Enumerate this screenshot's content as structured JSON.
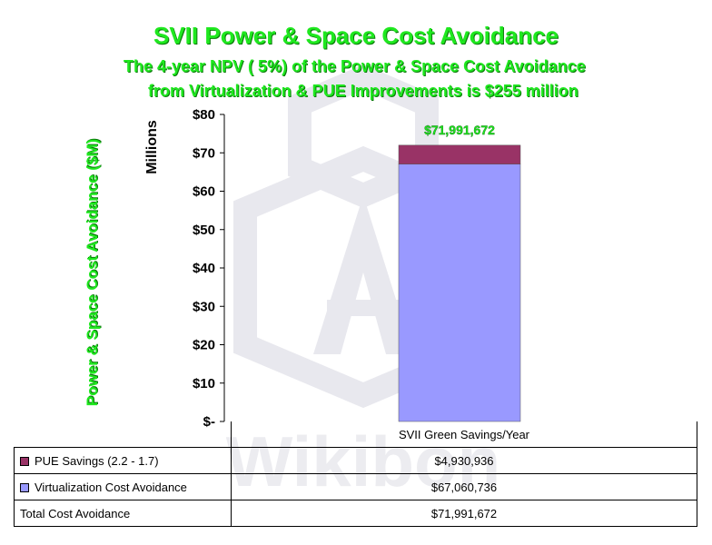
{
  "header": {
    "title": "SVII Power & Space Cost Avoidance",
    "subtitle_line1": "The 4-year NPV ( 5%) of the Power & Space Cost Avoidance",
    "subtitle_line2": "from Virtualization & PUE Improvements is $255 million"
  },
  "colors": {
    "title_green": "#1fe81f",
    "virtualization": "#9999ff",
    "pue": "#993366"
  },
  "chart_data": {
    "type": "bar",
    "stacked": true,
    "categories": [
      "SVII Green Savings/Year"
    ],
    "series": [
      {
        "name": "Virtualization Cost Avoidance",
        "values": [
          67.060736
        ],
        "color": "#9999ff"
      },
      {
        "name": "PUE Savings (2.2 - 1.7)",
        "values": [
          4.930936
        ],
        "color": "#993366"
      }
    ],
    "ylabel": "Power & Space Cost Avoidance ($M)",
    "unit_label": "Millions",
    "ylim": [
      0,
      80
    ],
    "yticks": [
      0,
      10,
      20,
      30,
      40,
      50,
      60,
      70,
      80
    ],
    "ytick_labels": [
      "$-",
      "$10",
      "$20",
      "$30",
      "$40",
      "$50",
      "$60",
      "$70",
      "$80"
    ],
    "total_label": "$71,991,672",
    "grid": false
  },
  "table": {
    "category": "SVII Green Savings/Year",
    "rows": [
      {
        "label": "PUE Savings (2.2 - 1.7)",
        "value": "$4,930,936"
      },
      {
        "label": "Virtualization Cost Avoidance",
        "value": "$67,060,736"
      },
      {
        "label": "Total Cost Avoidance",
        "value": "$71,991,672"
      }
    ]
  }
}
